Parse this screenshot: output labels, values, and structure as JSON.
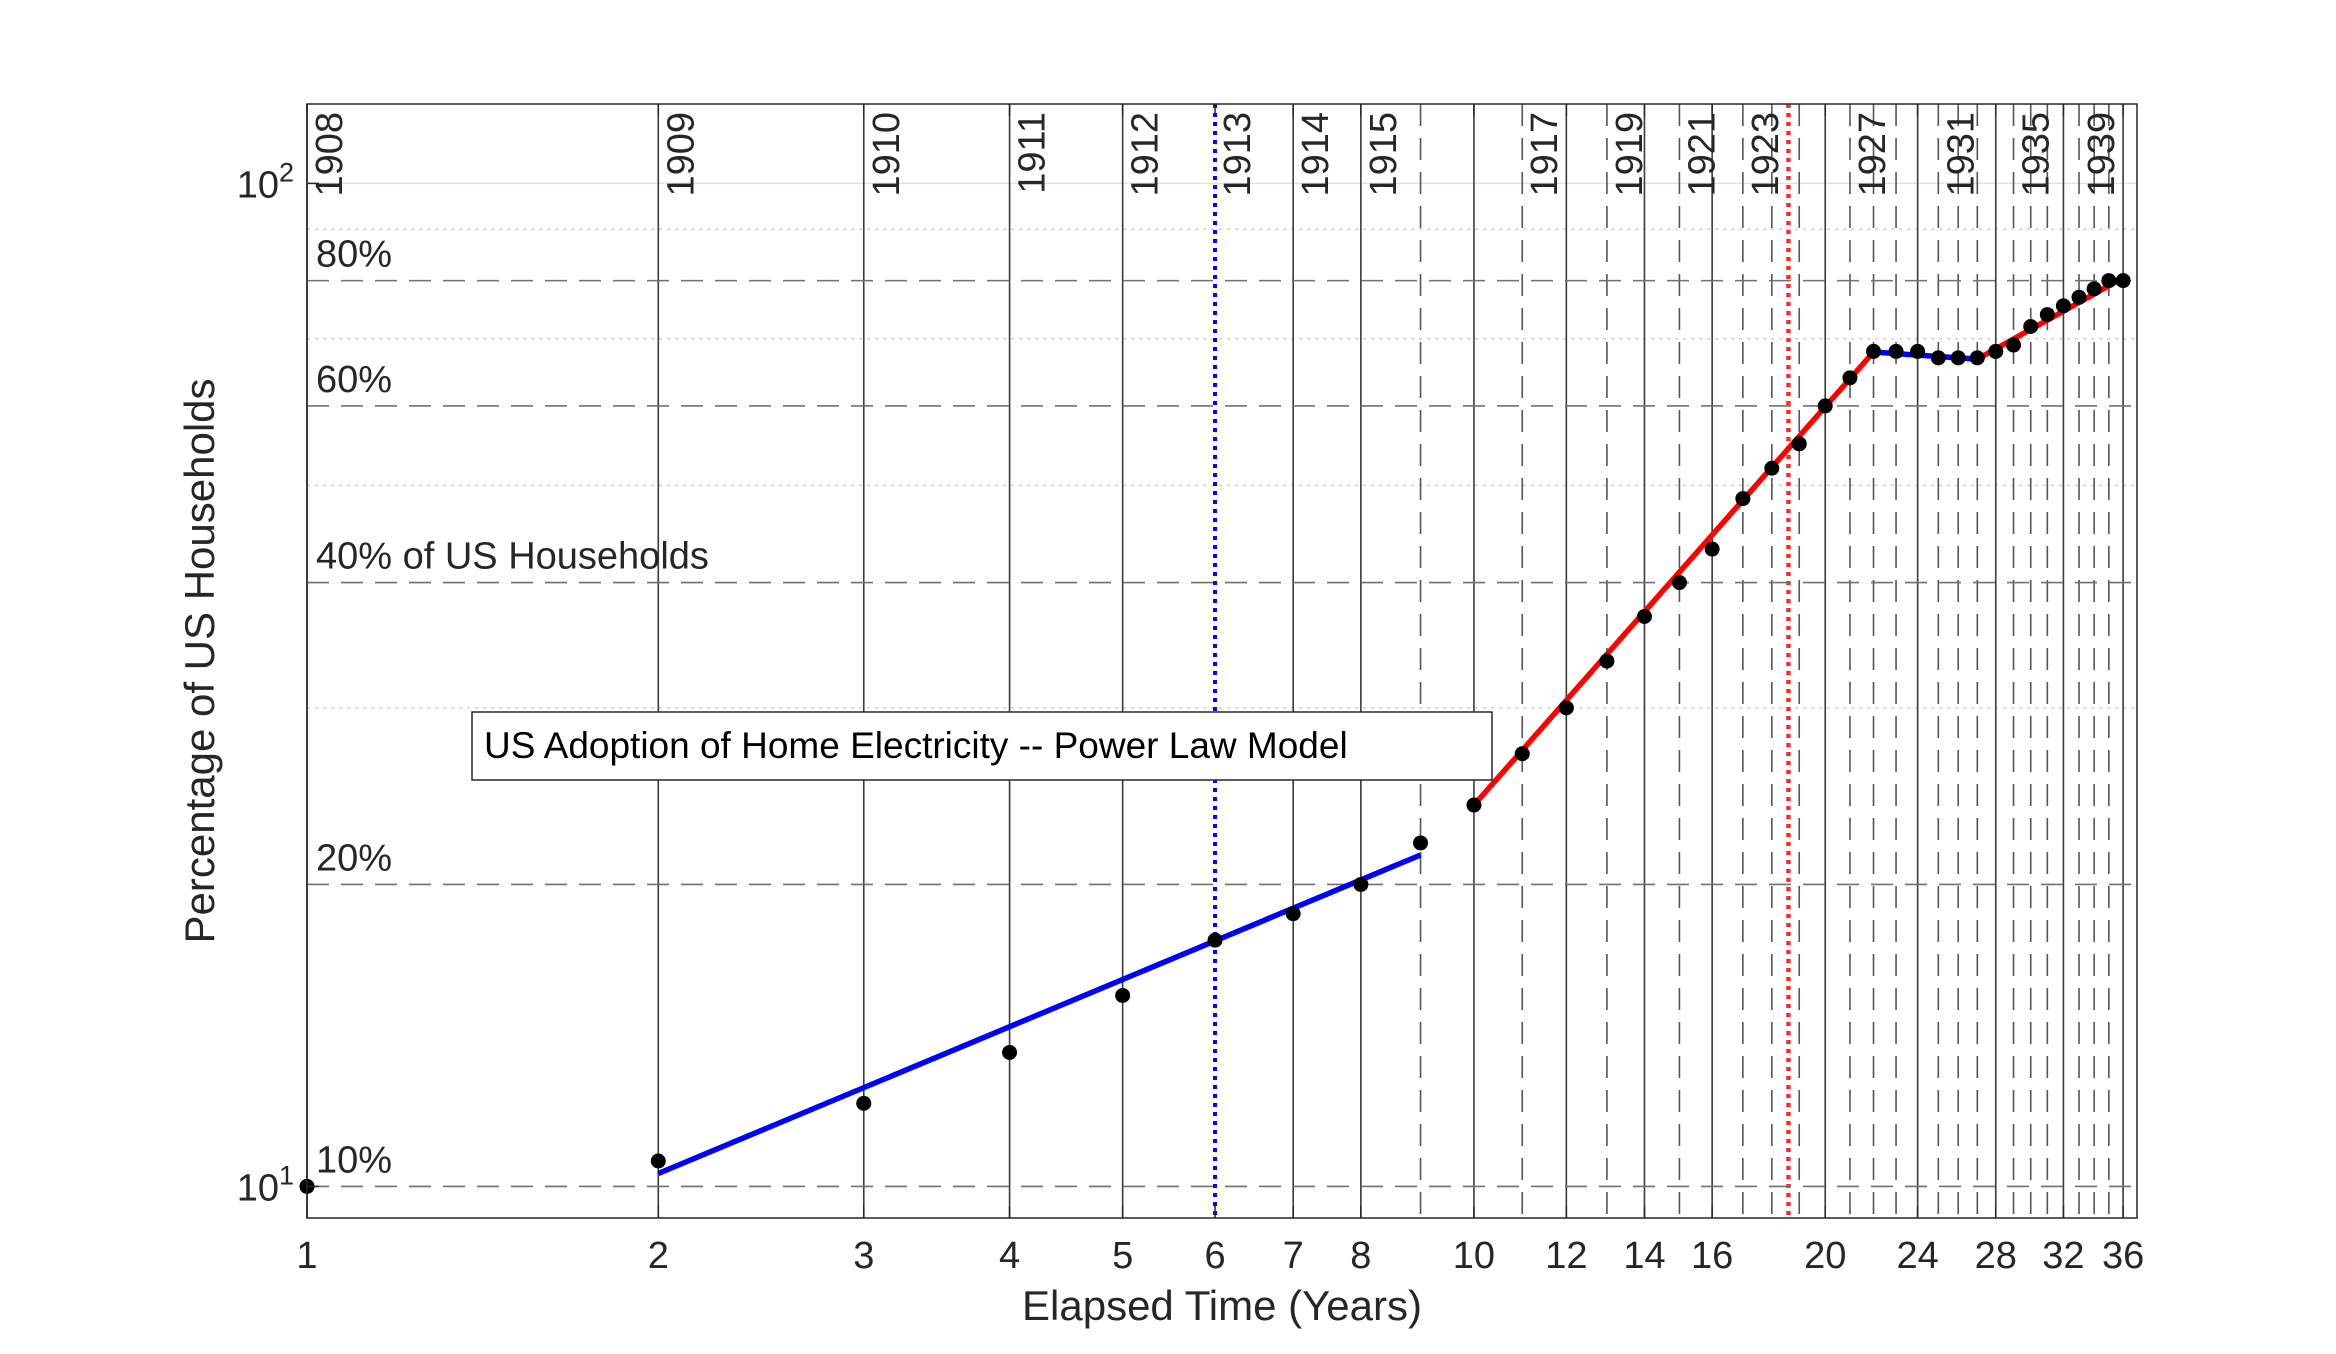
{
  "chart_data": {
    "type": "line",
    "title": "US Adoption of Home Electricity -- Power Law Model",
    "xlabel": "Elapsed Time (Years)",
    "ylabel": "Percentage of US Households",
    "x_scale": "log",
    "y_scale": "log",
    "xlim": [
      1,
      37
    ],
    "ylim": [
      9.3,
      120
    ],
    "grid": "on",
    "x_ticks": [
      1,
      2,
      3,
      4,
      5,
      6,
      7,
      8,
      10,
      12,
      14,
      16,
      20,
      24,
      28,
      32,
      36
    ],
    "y_ticks": [
      {
        "value": 10,
        "base": "10",
        "exp": "1"
      },
      {
        "value": 100,
        "base": "10",
        "exp": "2"
      }
    ],
    "year_markers": [
      {
        "x": 1,
        "label": "1908",
        "style": "solid"
      },
      {
        "x": 2,
        "label": "1909",
        "style": "solid"
      },
      {
        "x": 3,
        "label": "1910",
        "style": "solid"
      },
      {
        "x": 4,
        "label": "1911",
        "style": "solid"
      },
      {
        "x": 5,
        "label": "1912",
        "style": "solid"
      },
      {
        "x": 6,
        "label": "1913",
        "style": "dotted-blue"
      },
      {
        "x": 7,
        "label": "1914",
        "style": "solid"
      },
      {
        "x": 8,
        "label": "1915",
        "style": "solid"
      },
      {
        "x": 9,
        "label": "",
        "style": "dashed"
      },
      {
        "x": 10,
        "label": "",
        "style": "solid"
      },
      {
        "x": 11,
        "label": "1917",
        "style": "dashed"
      },
      {
        "x": 12,
        "label": "",
        "style": "solid"
      },
      {
        "x": 13,
        "label": "1919",
        "style": "dashed"
      },
      {
        "x": 14,
        "label": "",
        "style": "solid"
      },
      {
        "x": 15,
        "label": "1921",
        "style": "dashed"
      },
      {
        "x": 16,
        "label": "",
        "style": "solid"
      },
      {
        "x": 17,
        "label": "1923",
        "style": "dashed"
      },
      {
        "x": 18,
        "label": "",
        "style": "dashed"
      },
      {
        "x": 19,
        "label": "",
        "style": "dashed"
      },
      {
        "x": 20,
        "label": "",
        "style": "solid"
      },
      {
        "x": 21,
        "label": "1927",
        "style": "dashed"
      },
      {
        "x": 22,
        "label": "",
        "style": "dashed"
      },
      {
        "x": 23,
        "label": "",
        "style": "dashed"
      },
      {
        "x": 24,
        "label": "",
        "style": "solid"
      },
      {
        "x": 25,
        "label": "1931",
        "style": "dashed"
      },
      {
        "x": 26,
        "label": "",
        "style": "dashed"
      },
      {
        "x": 27,
        "label": "",
        "style": "dashed"
      },
      {
        "x": 28,
        "label": "",
        "style": "solid"
      },
      {
        "x": 29,
        "label": "1935",
        "style": "dashed"
      },
      {
        "x": 30,
        "label": "",
        "style": "dashed"
      },
      {
        "x": 31,
        "label": "",
        "style": "dashed"
      },
      {
        "x": 32,
        "label": "",
        "style": "solid"
      },
      {
        "x": 33,
        "label": "1939",
        "style": "dashed"
      },
      {
        "x": 34,
        "label": "",
        "style": "dashed"
      },
      {
        "x": 35,
        "label": "",
        "style": "dashed"
      },
      {
        "x": 36,
        "label": "",
        "style": "solid"
      }
    ],
    "inflection_line": {
      "x": 18.6,
      "style": "dotted-red"
    },
    "percent_lines": [
      {
        "y": 10,
        "label": "10%"
      },
      {
        "y": 20,
        "label": "20%"
      },
      {
        "y": 40,
        "label": "40% of US Households"
      },
      {
        "y": 60,
        "label": "60%"
      },
      {
        "y": 80,
        "label": "80%"
      }
    ],
    "minor_y_gridlines": [
      30,
      50,
      70,
      90
    ],
    "series": [
      {
        "type": "scatter",
        "color": "#000000",
        "points": [
          [
            1,
            10.0
          ],
          [
            2,
            10.6
          ],
          [
            3,
            12.1
          ],
          [
            4,
            13.6
          ],
          [
            5,
            15.5
          ],
          [
            6,
            17.6
          ],
          [
            7,
            18.7
          ],
          [
            8,
            20.0
          ],
          [
            9,
            22.0
          ],
          [
            10,
            24.0
          ],
          [
            11,
            27.0
          ],
          [
            12,
            30.0
          ],
          [
            13,
            33.4
          ],
          [
            14,
            37.0
          ],
          [
            15,
            40.0
          ],
          [
            16,
            43.2
          ],
          [
            17,
            48.5
          ],
          [
            18,
            52.0
          ],
          [
            19,
            55.0
          ],
          [
            20,
            60.0
          ],
          [
            21,
            64.0
          ],
          [
            22,
            68.0
          ],
          [
            23,
            68.0
          ],
          [
            24,
            68.0
          ],
          [
            25,
            67.0
          ],
          [
            26,
            67.0
          ],
          [
            27,
            67.0
          ],
          [
            28,
            68.0
          ],
          [
            29,
            69.0
          ],
          [
            30,
            72.0
          ],
          [
            31,
            74.0
          ],
          [
            32,
            75.5
          ],
          [
            33,
            77.0
          ],
          [
            34,
            78.5
          ],
          [
            35,
            80.0
          ],
          [
            36,
            80.0
          ]
        ]
      },
      {
        "type": "fit",
        "color": "#0000ff",
        "points": [
          [
            2,
            10.3
          ],
          [
            9,
            21.4
          ]
        ]
      },
      {
        "type": "fit",
        "color": "#ff0000",
        "points": [
          [
            10,
            24.0
          ],
          [
            22,
            67.9
          ]
        ]
      },
      {
        "type": "fit",
        "color": "#0000ff",
        "points": [
          [
            22,
            67.9
          ],
          [
            27,
            66.8
          ]
        ]
      },
      {
        "type": "fit",
        "color": "#ff0000",
        "points": [
          [
            27,
            66.8
          ],
          [
            36,
            80.5
          ]
        ]
      }
    ]
  }
}
